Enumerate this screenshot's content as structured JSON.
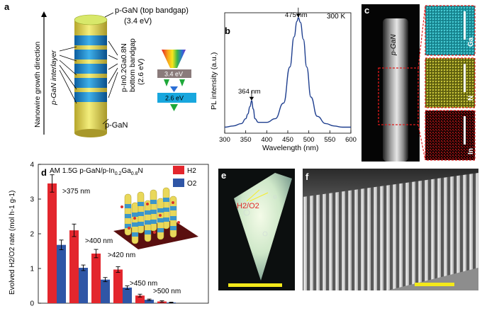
{
  "panel_a": {
    "label": "a",
    "axis_label": "Nanowire growth direction",
    "interlayer_label": "p-GaN interlayer",
    "top_label": "p-GaN (top bandgap)",
    "top_energy": "(3.4 eV)",
    "side_line1": "p-In0.2Ga0.8N",
    "side_line2": "bottom bandgap",
    "side_line3": "(2.6 eV)",
    "bottom_label": "p-GaN",
    "band_top": "3.4 eV",
    "band_bottom": "2.6 eV",
    "colors": {
      "blue": "#1d8fd0",
      "yellow": "#e9e25a",
      "band_gray": "#8a7b7b",
      "band_cyan": "#18a7de",
      "green_arrow": "#1fa83a"
    }
  },
  "panel_b": {
    "label": "b",
    "annotation_temp": "300 K",
    "peak1_label": "364 nm",
    "peak2_label": "475 nm",
    "chart_data": {
      "type": "line",
      "title": "",
      "xlabel": "Wavelength (nm)",
      "ylabel": "PL intensity (a.u.)",
      "xlim": [
        300,
        600
      ],
      "ylim": [
        0,
        1.0
      ],
      "x_ticks": [
        "300",
        "350",
        "400",
        "450",
        "500",
        "550",
        "600"
      ],
      "series": [
        {
          "name": "PL spectrum",
          "color": "#1f3f8f",
          "x": [
            300,
            320,
            340,
            350,
            355,
            360,
            364,
            368,
            372,
            380,
            400,
            420,
            440,
            455,
            465,
            472,
            475,
            480,
            487,
            495,
            505,
            520,
            540,
            560,
            580,
            600
          ],
          "y": [
            0.05,
            0.06,
            0.08,
            0.12,
            0.16,
            0.22,
            0.27,
            0.2,
            0.12,
            0.09,
            0.09,
            0.12,
            0.25,
            0.55,
            0.8,
            0.93,
            0.96,
            0.92,
            0.78,
            0.55,
            0.3,
            0.14,
            0.08,
            0.06,
            0.05,
            0.05
          ]
        }
      ]
    }
  },
  "panel_c": {
    "label": "c",
    "wire_label": "p-GaN",
    "maps": [
      "Ga",
      "N",
      "In"
    ]
  },
  "panel_d": {
    "label": "d",
    "header_part1": "AM 1.5G p-GaN/p-In",
    "header_sub1": "0.2",
    "header_part2": "Ga",
    "header_sub2": "0.8",
    "header_part3": "N",
    "cutoff_labels": [
      ">375 nm",
      ">400 nm",
      ">420 nm",
      ">450 nm",
      ">500 nm"
    ],
    "chart_data": {
      "type": "bar",
      "title": "",
      "xlabel": "",
      "ylabel": "Evolved H2/O2 rate (mol h-1 g-1)",
      "ylim": [
        0,
        4
      ],
      "y_ticks": [
        "0",
        "1",
        "2",
        "3",
        "4"
      ],
      "categories": [
        "AM 1.5G",
        ">375 nm",
        ">400 nm",
        ">420 nm",
        ">450 nm",
        ">500 nm"
      ],
      "series": [
        {
          "name": "H2",
          "color": "#e3262d",
          "values": [
            3.45,
            2.1,
            1.43,
            0.97,
            0.22,
            0.05
          ],
          "errors": [
            0.25,
            0.18,
            0.12,
            0.08,
            0.04,
            0.02
          ]
        },
        {
          "name": "O2",
          "color": "#2f56a6",
          "values": [
            1.68,
            1.02,
            0.68,
            0.45,
            0.1,
            0.02
          ],
          "errors": [
            0.14,
            0.08,
            0.06,
            0.05,
            0.02,
            0.01
          ]
        }
      ]
    }
  },
  "panel_e": {
    "label": "e",
    "photo_text": "H2/O2"
  },
  "panel_f": {
    "label": "f"
  }
}
